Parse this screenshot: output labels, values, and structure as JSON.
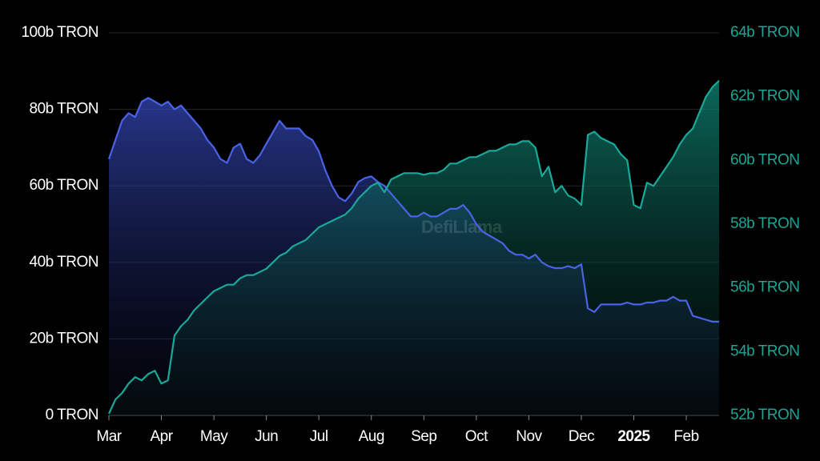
{
  "chart_data": {
    "type": "line",
    "watermark": "DefiLlama",
    "categories": [
      "Mar",
      null,
      null,
      null,
      null,
      null,
      null,
      null,
      "Apr",
      null,
      null,
      null,
      null,
      null,
      null,
      null,
      "May",
      null,
      null,
      null,
      null,
      null,
      null,
      null,
      "Jun",
      null,
      null,
      null,
      null,
      null,
      null,
      null,
      "Jul",
      null,
      null,
      null,
      null,
      null,
      null,
      null,
      "Aug",
      null,
      null,
      null,
      null,
      null,
      null,
      null,
      "Sep",
      null,
      null,
      null,
      null,
      null,
      null,
      null,
      "Oct",
      null,
      null,
      null,
      null,
      null,
      null,
      null,
      "Nov",
      null,
      null,
      null,
      null,
      null,
      null,
      null,
      "Dec",
      null,
      null,
      null,
      null,
      null,
      null,
      null,
      "2025",
      null,
      null,
      null,
      null,
      null,
      null,
      null,
      "Feb",
      null,
      null,
      null,
      null,
      null
    ],
    "ylim": [
      0,
      100
    ],
    "yticks": [
      {
        "value": 0,
        "label": "0 TRON"
      },
      {
        "value": 20,
        "label": "20b TRON"
      },
      {
        "value": 40,
        "label": "40b TRON"
      },
      {
        "value": 60,
        "label": "60b TRON"
      },
      {
        "value": 80,
        "label": "80b TRON"
      },
      {
        "value": 100,
        "label": "100b TRON"
      }
    ],
    "y2lim": [
      52,
      64
    ],
    "y2ticks": [
      {
        "value": 52,
        "label": "52b TRON"
      },
      {
        "value": 54,
        "label": "54b TRON"
      },
      {
        "value": 56,
        "label": "56b TRON"
      },
      {
        "value": 58,
        "label": "58b TRON"
      },
      {
        "value": 60,
        "label": "60b TRON"
      },
      {
        "value": 62,
        "label": "62b TRON"
      },
      {
        "value": 64,
        "label": "64b TRON"
      }
    ],
    "grid": true,
    "series": [
      {
        "color": "#4a63e6",
        "axis": "y",
        "values": [
          67,
          72,
          77,
          79,
          78,
          82,
          83,
          82,
          81,
          82,
          80,
          81,
          79,
          77,
          75,
          72,
          70,
          67,
          66,
          70,
          71,
          67,
          66,
          68,
          71,
          74,
          77,
          75,
          75,
          75,
          73,
          72,
          69,
          64,
          60,
          57,
          56,
          58,
          61,
          62,
          62.5,
          61,
          60,
          58,
          56,
          54,
          52,
          52,
          53,
          52,
          52,
          53,
          54,
          54,
          55,
          53,
          50,
          48,
          47,
          46,
          45,
          43,
          42,
          42,
          41,
          42,
          40,
          39,
          38.5,
          38.5,
          39,
          38.5,
          39.5,
          28,
          27,
          29,
          29,
          29,
          29,
          29.5,
          29,
          29,
          29.5,
          29.5,
          30,
          30,
          31,
          30,
          30,
          26,
          25.5,
          25,
          24.5,
          24.5
        ]
      },
      {
        "color": "#19a899",
        "axis": "y2",
        "values": [
          52.05,
          52.5,
          52.7,
          53.0,
          53.2,
          53.1,
          53.3,
          53.4,
          53.0,
          53.1,
          54.5,
          54.8,
          55.0,
          55.3,
          55.5,
          55.7,
          55.9,
          56.0,
          56.1,
          56.1,
          56.3,
          56.4,
          56.4,
          56.5,
          56.6,
          56.8,
          57.0,
          57.1,
          57.3,
          57.4,
          57.5,
          57.7,
          57.9,
          58.0,
          58.1,
          58.2,
          58.3,
          58.5,
          58.8,
          59.0,
          59.2,
          59.3,
          59.0,
          59.4,
          59.5,
          59.6,
          59.6,
          59.6,
          59.55,
          59.6,
          59.6,
          59.7,
          59.9,
          59.9,
          60.0,
          60.1,
          60.1,
          60.2,
          60.3,
          60.3,
          60.4,
          60.5,
          60.5,
          60.6,
          60.6,
          60.4,
          59.5,
          59.8,
          59.0,
          59.2,
          58.9,
          58.8,
          58.6,
          60.8,
          60.9,
          60.7,
          60.6,
          60.5,
          60.2,
          60.0,
          58.6,
          58.5,
          59.3,
          59.2,
          59.5,
          59.8,
          60.1,
          60.5,
          60.8,
          61.0,
          61.5,
          62.0,
          62.3,
          62.5
        ]
      }
    ]
  }
}
